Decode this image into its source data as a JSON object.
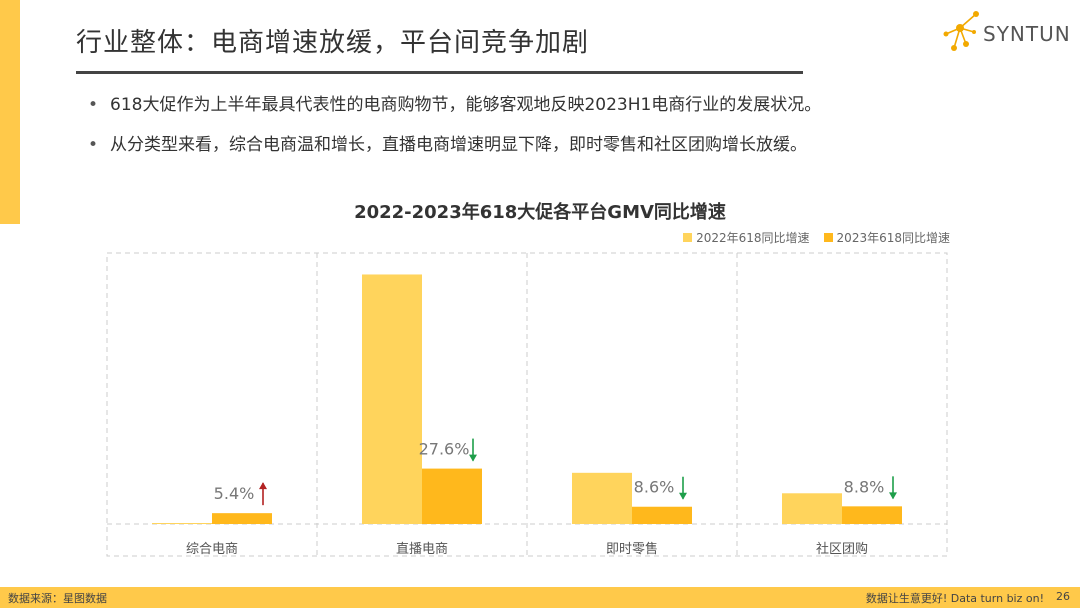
{
  "header": {
    "title": "行业整体：电商增速放缓，平台间竞争加剧",
    "logo_text": "SYNTUN"
  },
  "bullets": [
    "618大促作为上半年最具代表性的电商购物节，能够客观地反映2023H1电商行业的发展状况。",
    "从分类型来看，综合电商温和增长，直播电商增速明显下降，即时零售和社区团购增长放缓。"
  ],
  "colors": {
    "series_2022": "#FFD45C",
    "series_2023": "#FFB81C",
    "accent": "#FFC94A",
    "arrow_up": "#B22222",
    "arrow_down": "#1E9E4A"
  },
  "chart_data": {
    "type": "bar",
    "title": "2022-2023年618大促各平台GMV同比增速",
    "categories": [
      "综合电商",
      "直播电商",
      "即时零售",
      "社区团购"
    ],
    "series": [
      {
        "name": "2022年618同比增速",
        "values": [
          0.3,
          124.3,
          25.5,
          15.3
        ]
      },
      {
        "name": "2023年618同比增速",
        "values": [
          5.4,
          27.6,
          8.6,
          8.8
        ]
      }
    ],
    "data_labels": [
      "5.4%",
      "27.6%",
      "8.6%",
      "8.8%"
    ],
    "trend": [
      "up",
      "down",
      "down",
      "down"
    ],
    "ylim": [
      0,
      135
    ],
    "grid": false,
    "legend": "top-right"
  },
  "footer": {
    "source": "数据来源：星图数据",
    "slogan": "数据让生意更好! Data turn biz on!",
    "page": "26"
  }
}
